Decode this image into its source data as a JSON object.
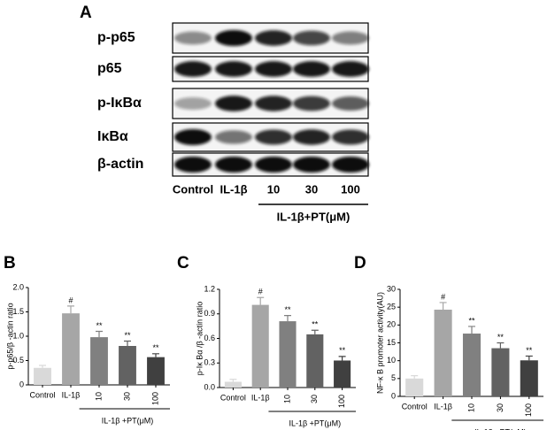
{
  "blot": {
    "panel": "A",
    "rows": [
      "p-p65",
      "p65",
      "p-IκBα",
      "IκBα",
      "β-actin"
    ],
    "lanes": [
      "Control",
      "IL-1β",
      "10",
      "30",
      "100"
    ],
    "group_label": "IL-1β+PT(μM)"
  },
  "chart_data": [
    {
      "type": "bar",
      "panel": "B",
      "y_label": "p-p65/β -actin ratio",
      "categories": [
        "Control",
        "IL-1β",
        "10",
        "30",
        "100"
      ],
      "values": [
        0.35,
        1.47,
        0.98,
        0.8,
        0.57
      ],
      "errors": [
        0.05,
        0.15,
        0.12,
        0.1,
        0.07
      ],
      "annotations": [
        null,
        "#",
        "**",
        "**",
        "**"
      ],
      "colors": [
        "#d9d9d9",
        "#a6a6a6",
        "#808080",
        "#626262",
        "#404040"
      ],
      "group_label": "IL-1β +PT(μM)",
      "ylim": [
        0,
        2
      ],
      "yticks": [
        0,
        0.5,
        {
          "value": 1,
          "label": "1.0"
        },
        1.5,
        {
          "value": 2,
          "label": "2.0"
        }
      ]
    },
    {
      "type": "bar",
      "panel": "C",
      "y_label": "p-Iκ Bα /β -actin ratio",
      "categories": [
        "Control",
        "IL-1β",
        "10",
        "30",
        "100"
      ],
      "values": [
        0.07,
        1.01,
        0.81,
        0.65,
        0.33
      ],
      "errors": [
        0.03,
        0.09,
        0.07,
        0.05,
        0.05
      ],
      "annotations": [
        null,
        "#",
        "**",
        "**",
        "**"
      ],
      "colors": [
        "#d9d9d9",
        "#a6a6a6",
        "#808080",
        "#626262",
        "#404040"
      ],
      "group_label": "IL-1β +PT(μM)",
      "ylim": [
        0,
        1.2
      ],
      "yticks": [
        {
          "value": 0,
          "label": "0.0"
        },
        0.3,
        0.6,
        0.9,
        1.2
      ]
    },
    {
      "type": "bar",
      "panel": "D",
      "y_label": "NF-κ B promoter activity(AU)",
      "categories": [
        "Control",
        "IL-1β",
        "10",
        "30",
        "100"
      ],
      "values": [
        5.0,
        24.3,
        17.6,
        13.5,
        10.1
      ],
      "errors": [
        0.8,
        2.0,
        2.0,
        1.5,
        1.2
      ],
      "annotations": [
        null,
        "#",
        "**",
        "**",
        "**"
      ],
      "colors": [
        "#d9d9d9",
        "#a6a6a6",
        "#808080",
        "#626262",
        "#404040"
      ],
      "group_label": "IL-1β +PT(μM)",
      "ylim": [
        0,
        30
      ],
      "yticks": [
        0,
        5,
        10,
        15,
        20,
        25,
        30
      ]
    }
  ]
}
